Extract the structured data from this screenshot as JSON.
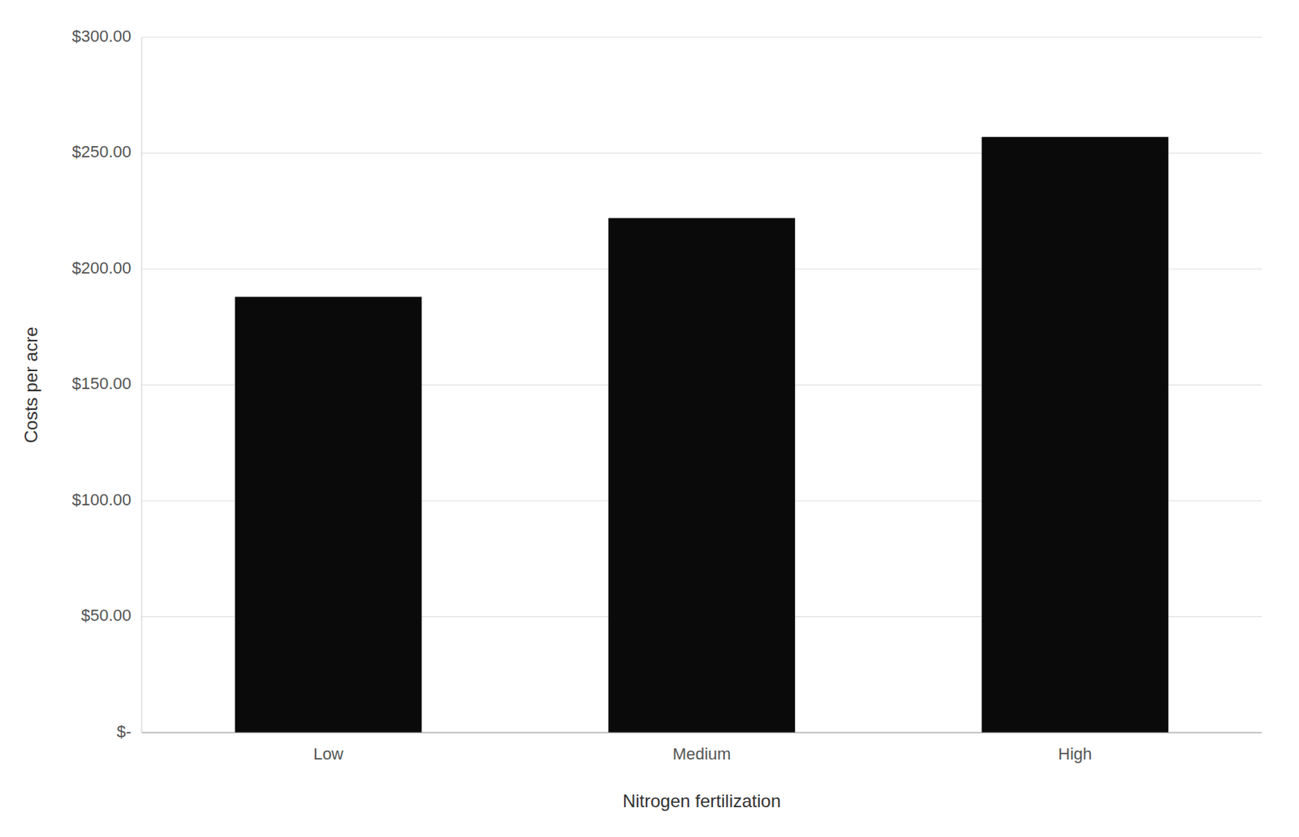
{
  "chart_data": {
    "type": "bar",
    "categories": [
      "Low",
      "Medium",
      "High"
    ],
    "values": [
      188.0,
      222.0,
      257.0
    ],
    "color": "#0a0a0a",
    "xlabel": "Nitrogen fertilization",
    "ylabel": "Costs per acre",
    "ylim": [
      0,
      300
    ],
    "yticks": [
      {
        "value": 0,
        "label": "$-"
      },
      {
        "value": 50,
        "label": "$50.00"
      },
      {
        "value": 100,
        "label": "$100.00"
      },
      {
        "value": 150,
        "label": "$150.00"
      },
      {
        "value": 200,
        "label": "$200.00"
      },
      {
        "value": 250,
        "label": "$250.00"
      },
      {
        "value": 300,
        "label": "$300.00"
      }
    ],
    "grid": true
  }
}
